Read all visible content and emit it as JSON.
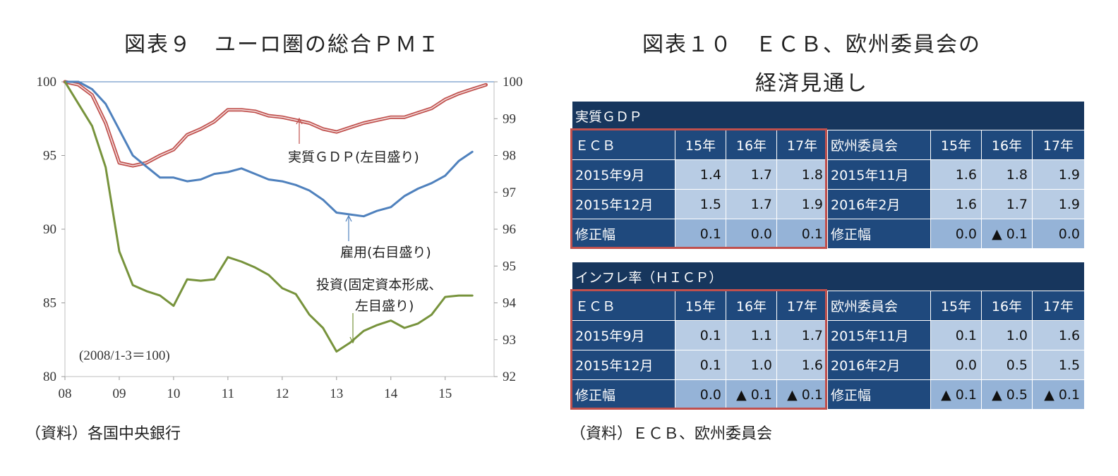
{
  "left_figure": {
    "title": "図表９　ユーロ圏の総合ＰＭＩ",
    "source": "（資料）各国中央銀行",
    "note": "(2008/1-3＝100)",
    "annotations": {
      "gdp": "実質ＧＤＰ(左目盛り)",
      "employment": "雇用(右目盛り)",
      "investment_1": "投資(固定資本形成、",
      "investment_2": "左目盛り)"
    }
  },
  "chart_data": {
    "type": "line",
    "x_tick_labels": [
      "08",
      "09",
      "10",
      "11",
      "12",
      "13",
      "14",
      "15"
    ],
    "x_tick_years": [
      2008,
      2009,
      2010,
      2011,
      2012,
      2013,
      2014,
      2015
    ],
    "y_left": {
      "min": 80,
      "max": 100,
      "ticks": [
        100,
        95,
        90,
        85,
        80
      ]
    },
    "y_right": {
      "min": 92,
      "max": 100,
      "ticks": [
        100,
        99,
        98,
        97,
        96,
        95,
        94,
        93,
        92
      ]
    },
    "x_years_quarterly": [
      2008.0,
      2008.25,
      2008.5,
      2008.75,
      2009.0,
      2009.25,
      2009.5,
      2009.75,
      2010.0,
      2010.25,
      2010.5,
      2010.75,
      2011.0,
      2011.25,
      2011.5,
      2011.75,
      2012.0,
      2012.25,
      2012.5,
      2012.75,
      2013.0,
      2013.25,
      2013.5,
      2013.75,
      2014.0,
      2014.25,
      2014.5,
      2014.75,
      2015.0,
      2015.25,
      2015.5,
      2015.75
    ],
    "series": [
      {
        "name": "実質ＧＤＰ(左目盛り)",
        "axis": "left",
        "color": "#c0504d",
        "values": [
          100.0,
          99.8,
          99.1,
          97.2,
          94.5,
          94.3,
          94.5,
          95.0,
          95.4,
          96.4,
          96.8,
          97.3,
          98.1,
          98.1,
          98.0,
          97.7,
          97.6,
          97.4,
          97.2,
          96.8,
          96.6,
          96.9,
          97.2,
          97.4,
          97.6,
          97.6,
          97.9,
          98.2,
          98.8,
          99.2,
          99.5,
          99.8
        ]
      },
      {
        "name": "雇用(右目盛り)",
        "axis": "right",
        "color": "#4f81bd",
        "values": [
          100.0,
          100.0,
          99.8,
          99.4,
          98.7,
          98.0,
          97.7,
          97.4,
          97.4,
          97.3,
          97.35,
          97.5,
          97.55,
          97.65,
          97.5,
          97.35,
          97.3,
          97.2,
          97.05,
          96.8,
          96.45,
          96.4,
          96.35,
          96.5,
          96.6,
          96.9,
          97.1,
          97.25,
          97.45,
          97.85,
          98.1,
          null
        ]
      },
      {
        "name": "投資(固定資本形成、左目盛り)",
        "axis": "left",
        "color": "#77933c",
        "values": [
          100.0,
          98.5,
          97.0,
          94.2,
          88.5,
          86.2,
          85.8,
          85.5,
          84.8,
          86.6,
          86.5,
          86.6,
          88.1,
          87.8,
          87.4,
          86.9,
          86.0,
          85.6,
          84.2,
          83.3,
          81.7,
          82.3,
          83.1,
          83.5,
          83.8,
          83.3,
          83.6,
          84.2,
          85.4,
          85.5,
          85.5,
          null
        ]
      }
    ]
  },
  "right_figure": {
    "title_line1": "図表１０　ＥＣＢ、欧州委員会の",
    "title_line2": "経済見通し",
    "source": "（資料）ＥＣＢ、欧州委員会",
    "tables": [
      {
        "caption": "実質ＧＤＰ",
        "head": [
          "ＥＣＢ",
          "15年",
          "16年",
          "17年",
          "欧州委員会",
          "15年",
          "16年",
          "17年"
        ],
        "rows": [
          [
            "2015年9月",
            "1.4",
            "1.7",
            "1.8",
            "2015年11月",
            "1.6",
            "1.8",
            "1.9"
          ],
          [
            "2015年12月",
            "1.5",
            "1.7",
            "1.9",
            "2016年2月",
            "1.6",
            "1.7",
            "1.9"
          ],
          [
            "修正幅",
            "0.1",
            "0.0",
            "0.1",
            "修正幅",
            "0.0",
            "▲ 0.1",
            "0.0"
          ]
        ]
      },
      {
        "caption": "インフレ率（ＨＩＣＰ）",
        "head": [
          "ＥＣＢ",
          "15年",
          "16年",
          "17年",
          "欧州委員会",
          "15年",
          "16年",
          "17年"
        ],
        "rows": [
          [
            "2015年9月",
            "0.1",
            "1.1",
            "1.7",
            "2015年11月",
            "0.1",
            "1.0",
            "1.6"
          ],
          [
            "2015年12月",
            "0.1",
            "1.0",
            "1.6",
            "2016年2月",
            "0.0",
            "0.5",
            "1.5"
          ],
          [
            "修正幅",
            "0.0",
            "▲ 0.1",
            "▲ 0.1",
            "修正幅",
            "▲ 0.1",
            "▲ 0.5",
            "▲ 0.1"
          ]
        ]
      }
    ]
  }
}
